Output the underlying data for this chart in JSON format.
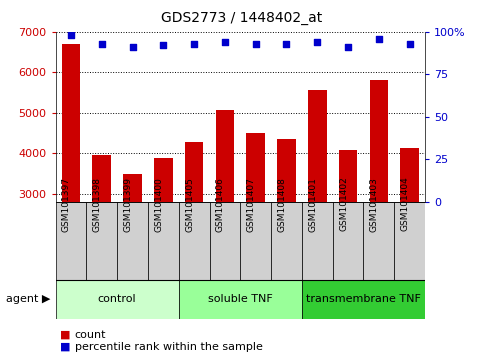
{
  "title": "GDS2773 / 1448402_at",
  "samples": [
    "GSM101397",
    "GSM101398",
    "GSM101399",
    "GSM101400",
    "GSM101405",
    "GSM101406",
    "GSM101407",
    "GSM101408",
    "GSM101401",
    "GSM101402",
    "GSM101403",
    "GSM101404"
  ],
  "counts": [
    6700,
    3950,
    3480,
    3870,
    4270,
    5060,
    4490,
    4360,
    5560,
    4080,
    5820,
    4120
  ],
  "percentiles": [
    98,
    93,
    91,
    92,
    93,
    94,
    93,
    93,
    94,
    91,
    96,
    93
  ],
  "ylim_left": [
    2800,
    7000
  ],
  "ylim_right": [
    0,
    100
  ],
  "yticks_left": [
    3000,
    4000,
    5000,
    6000,
    7000
  ],
  "yticks_right": [
    0,
    25,
    50,
    75,
    100
  ],
  "right_tick_labels": [
    "0",
    "25",
    "50",
    "75",
    "100%"
  ],
  "bar_color": "#cc0000",
  "dot_color": "#0000cc",
  "groups": [
    {
      "label": "control",
      "indices": [
        0,
        1,
        2,
        3
      ],
      "color": "#ccffcc"
    },
    {
      "label": "soluble TNF",
      "indices": [
        4,
        5,
        6,
        7
      ],
      "color": "#99ff99"
    },
    {
      "label": "transmembrane TNF",
      "indices": [
        8,
        9,
        10,
        11
      ],
      "color": "#33cc33"
    }
  ],
  "sample_bg_color": "#d0d0d0",
  "xlabel_agent": "agent",
  "legend_count_color": "#cc0000",
  "legend_pct_color": "#0000cc",
  "grid_color": "#000000",
  "background_color": "#ffffff",
  "bar_bottom": 2800
}
